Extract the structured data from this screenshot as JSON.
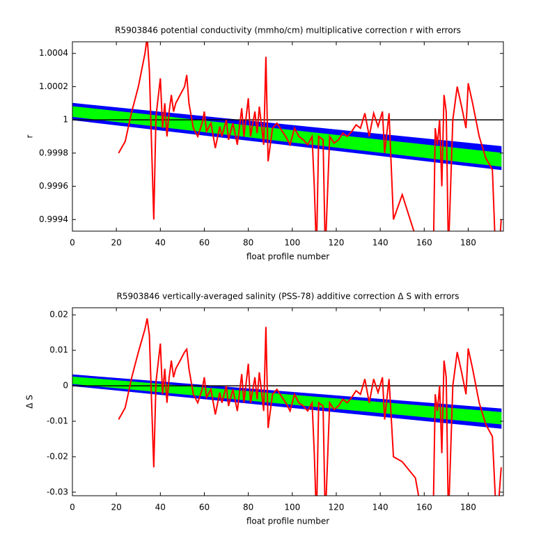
{
  "chart_data": [
    {
      "type": "line",
      "title": "R5903846 potential conductivity (mmho/cm) multiplicative correction r with errors",
      "xlabel": "float profile number",
      "ylabel": "r",
      "xlim": [
        0,
        196
      ],
      "xticks": [
        0,
        20,
        40,
        60,
        80,
        100,
        120,
        140,
        160,
        180
      ],
      "ylim": [
        0.99933,
        1.00047
      ],
      "yticks": [
        0.9994,
        0.9996,
        0.9998,
        1,
        1.0002,
        1.0004
      ],
      "hline": 1,
      "hline_color": "#000000",
      "bands": [
        {
          "color": "#0000ff",
          "x": [
            0,
            195
          ],
          "lower": [
            1.0,
            0.9997
          ],
          "upper": [
            1.0001,
            0.99984
          ]
        },
        {
          "color": "#00ff00",
          "x": [
            0,
            195
          ],
          "lower": [
            1.00002,
            0.99972
          ],
          "upper": [
            1.00008,
            0.9998
          ]
        }
      ],
      "x": [
        21,
        24,
        27,
        30,
        33,
        34,
        35,
        37,
        38,
        40,
        41,
        42,
        43,
        44,
        45,
        46,
        47,
        49,
        51,
        52,
        53,
        55,
        57,
        59,
        60,
        61,
        63,
        65,
        67,
        68,
        70,
        71,
        73,
        75,
        77,
        78,
        80,
        81,
        83,
        84,
        85,
        87,
        88,
        89,
        91,
        93,
        95,
        97,
        99,
        101,
        103,
        105,
        107,
        109,
        110,
        111,
        112,
        114,
        115,
        117,
        119,
        121,
        123,
        125,
        127,
        129,
        131,
        133,
        135,
        137,
        139,
        141,
        142,
        144,
        146,
        150,
        156,
        160,
        164,
        165,
        166,
        167,
        168,
        169,
        170,
        171,
        173,
        175,
        177,
        179,
        180,
        182,
        185,
        188,
        191,
        193,
        195
      ],
      "series": [
        {
          "color": "#ff0000",
          "values": [
            0.9998,
            0.99987,
            1.00005,
            1.0002,
            1.0004,
            1.0005,
            1.0003,
            0.9994,
            1.00002,
            1.00025,
            0.99995,
            1.0001,
            0.9999,
            1.00005,
            1.00015,
            1.00005,
            1.0001,
            1.00015,
            1.0002,
            1.00027,
            1.0001,
            0.99995,
            0.9999,
            0.99998,
            1.00005,
            0.99993,
            0.99998,
            0.99983,
            0.99996,
            0.9999,
            1,
            0.99988,
            0.99998,
            0.99985,
            1.00007,
            0.9999,
            1.00013,
            0.9999,
            1.00005,
            0.99992,
            1.00008,
            0.99985,
            1.00038,
            0.99975,
            0.99995,
            0.99998,
            0.99994,
            0.9999,
            0.99985,
            0.99995,
            0.9999,
            0.99988,
            0.99985,
            0.9999,
            0.9996,
            0.9992,
            0.9999,
            0.99988,
            0.9992,
            0.9999,
            0.99986,
            0.99988,
            0.99992,
            0.9999,
            0.99993,
            0.99997,
            0.99995,
            1.00004,
            0.9999,
            1.00004,
            0.99996,
            1.00005,
            0.9998,
            1.00004,
            0.9994,
            0.99955,
            0.9993,
            0.999,
            0.99905,
            0.99995,
            0.99985,
            1,
            0.9996,
            1.00015,
            1.00005,
            0.9992,
            1,
            1.0002,
            1.00008,
            0.99995,
            1.00022,
            1.0001,
            0.9999,
            0.99977,
            0.9997,
            0.999,
            0.9994
          ]
        }
      ]
    },
    {
      "type": "line",
      "title": "R5903846 vertically-averaged salinity (PSS-78) additive correction Δ S with errors",
      "xlabel": "float profile number",
      "ylabel": "Δ S",
      "xlim": [
        0,
        196
      ],
      "xticks": [
        0,
        20,
        40,
        60,
        80,
        100,
        120,
        140,
        160,
        180
      ],
      "ylim": [
        -0.031,
        0.022
      ],
      "yticks": [
        -0.03,
        -0.02,
        -0.01,
        0,
        0.01,
        0.02
      ],
      "hline": 0,
      "hline_color": "#000000",
      "bands": [
        {
          "color": "#0000ff",
          "x": [
            0,
            195
          ],
          "lower": [
            0,
            -0.012
          ],
          "upper": [
            0.0031,
            -0.0065
          ]
        },
        {
          "color": "#00ff00",
          "x": [
            0,
            195
          ],
          "lower": [
            0.0006,
            -0.0108
          ],
          "upper": [
            0.0025,
            -0.0075
          ]
        }
      ],
      "x": [
        21,
        24,
        27,
        30,
        33,
        34,
        35,
        37,
        38,
        40,
        41,
        42,
        43,
        44,
        45,
        46,
        47,
        49,
        51,
        52,
        53,
        55,
        57,
        59,
        60,
        61,
        63,
        65,
        67,
        68,
        70,
        71,
        73,
        75,
        77,
        78,
        80,
        81,
        83,
        84,
        85,
        87,
        88,
        89,
        91,
        93,
        95,
        97,
        99,
        101,
        103,
        105,
        107,
        109,
        110,
        111,
        112,
        114,
        115,
        117,
        119,
        121,
        123,
        125,
        127,
        129,
        131,
        133,
        135,
        137,
        139,
        141,
        142,
        144,
        146,
        150,
        156,
        160,
        164,
        165,
        166,
        167,
        168,
        169,
        170,
        171,
        173,
        175,
        177,
        179,
        180,
        182,
        185,
        188,
        191,
        193,
        195
      ],
      "series": [
        {
          "color": "#ff0000",
          "values": [
            -0.0095,
            -0.0062,
            0.0024,
            0.0095,
            0.016,
            0.019,
            0.0143,
            -0.023,
            0.001,
            0.0119,
            -0.0024,
            0.0048,
            -0.0048,
            0.0024,
            0.0071,
            0.0024,
            0.0048,
            0.0071,
            0.0095,
            0.0103,
            0.0048,
            -0.0024,
            -0.0048,
            -0.001,
            0.0024,
            -0.0033,
            -0.001,
            -0.0081,
            -0.0019,
            -0.0048,
            0,
            -0.0057,
            -0.001,
            -0.0071,
            0.0033,
            -0.0048,
            0.0062,
            -0.0048,
            0.0024,
            -0.0038,
            0.0038,
            -0.0071,
            0.0166,
            -0.0119,
            -0.0024,
            -0.001,
            -0.0029,
            -0.0048,
            -0.0071,
            -0.0024,
            -0.0048,
            -0.0057,
            -0.0071,
            -0.0048,
            -0.019,
            -0.038,
            -0.0048,
            -0.0057,
            -0.038,
            -0.0048,
            -0.0067,
            -0.0057,
            -0.0038,
            -0.0048,
            -0.0033,
            -0.0014,
            -0.0024,
            0.0019,
            -0.0048,
            0.0019,
            -0.0019,
            0.0024,
            -0.0095,
            0.0019,
            -0.02,
            -0.0214,
            -0.026,
            -0.04,
            -0.04,
            -0.0024,
            -0.0071,
            0,
            -0.019,
            0.0071,
            0.0024,
            -0.038,
            0,
            0.0095,
            0.0038,
            -0.0024,
            0.0105,
            0.0048,
            -0.0048,
            -0.0109,
            -0.0143,
            -0.04,
            -0.023
          ]
        }
      ]
    }
  ]
}
